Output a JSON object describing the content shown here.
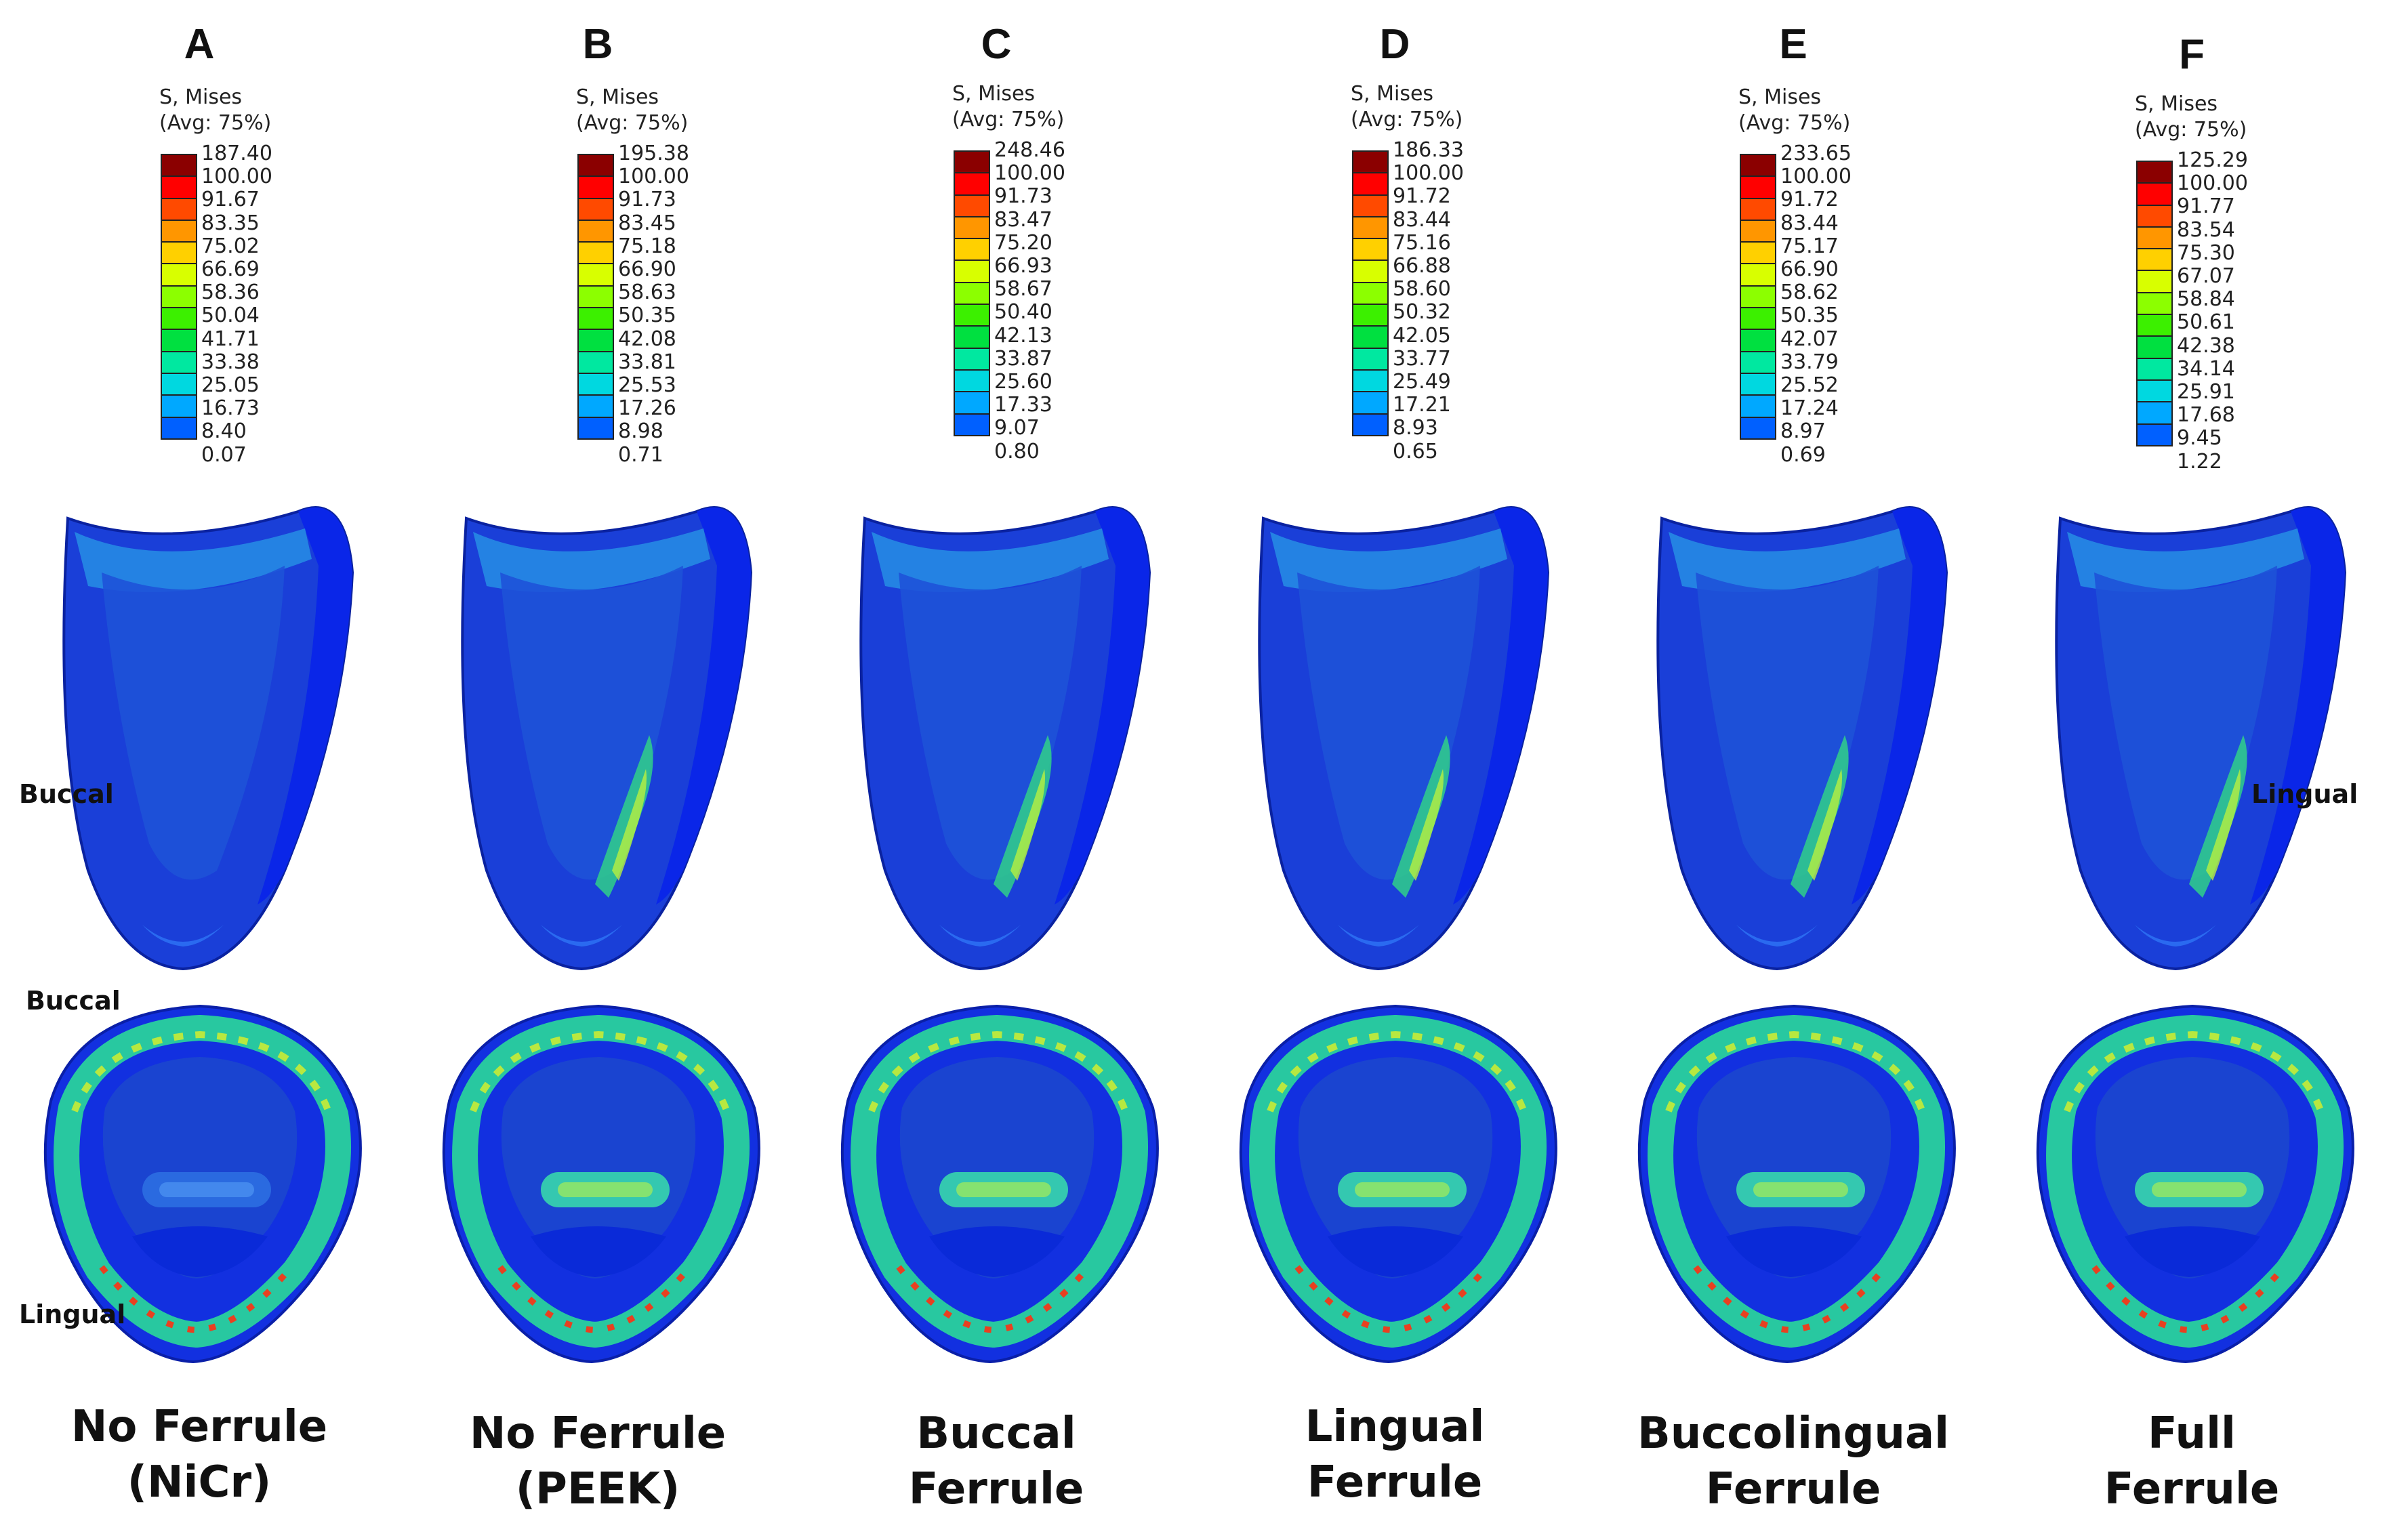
{
  "legend_title_line1": "S, Mises",
  "legend_title_line2": "(Avg: 75%)",
  "colors": [
    "#8b0000",
    "#ff0000",
    "#ff4a00",
    "#ff9600",
    "#ffd000",
    "#d8ff00",
    "#8cff00",
    "#3cf000",
    "#00e040",
    "#00e8a0",
    "#00d8e0",
    "#00a8ff",
    "#0060ff",
    "#0018ff"
  ],
  "panels": [
    {
      "letter": "A",
      "legend": [
        "187.40",
        "100.00",
        "91.67",
        "83.35",
        "75.02",
        "66.69",
        "58.36",
        "50.04",
        "41.71",
        "33.38",
        "25.05",
        "16.73",
        "8.40",
        "0.07"
      ],
      "caption_line1": "No Ferrule",
      "caption_line2": "(NiCr)"
    },
    {
      "letter": "B",
      "legend": [
        "195.38",
        "100.00",
        "91.73",
        "83.45",
        "75.18",
        "66.90",
        "58.63",
        "50.35",
        "42.08",
        "33.81",
        "25.53",
        "17.26",
        "8.98",
        "0.71"
      ],
      "caption_line1": "No Ferrule",
      "caption_line2": "(PEEK)"
    },
    {
      "letter": "C",
      "legend": [
        "248.46",
        "100.00",
        "91.73",
        "83.47",
        "75.20",
        "66.93",
        "58.67",
        "50.40",
        "42.13",
        "33.87",
        "25.60",
        "17.33",
        "9.07",
        "0.80"
      ],
      "caption_line1": "Buccal",
      "caption_line2": "Ferrule"
    },
    {
      "letter": "D",
      "legend": [
        "186.33",
        "100.00",
        "91.72",
        "83.44",
        "75.16",
        "66.88",
        "58.60",
        "50.32",
        "42.05",
        "33.77",
        "25.49",
        "17.21",
        "8.93",
        "0.65"
      ],
      "caption_line1": "Lingual",
      "caption_line2": "Ferrule"
    },
    {
      "letter": "E",
      "legend": [
        "233.65",
        "100.00",
        "91.72",
        "83.44",
        "75.17",
        "66.90",
        "58.62",
        "50.35",
        "42.07",
        "33.79",
        "25.52",
        "17.24",
        "8.97",
        "0.69"
      ],
      "caption_line1": "Buccolingual",
      "caption_line2": "Ferrule"
    },
    {
      "letter": "F",
      "legend": [
        "125.29",
        "100.00",
        "91.77",
        "83.54",
        "75.30",
        "67.07",
        "58.84",
        "50.61",
        "42.38",
        "34.14",
        "25.91",
        "17.68",
        "9.45",
        "1.22"
      ],
      "caption_line1": "Full",
      "caption_line2": "Ferrule"
    }
  ],
  "side_labels": {
    "buccal_side": "Buccal",
    "lingual_side": "Lingual",
    "buccal_top": "Buccal",
    "lingual_bottom": "Lingual"
  }
}
